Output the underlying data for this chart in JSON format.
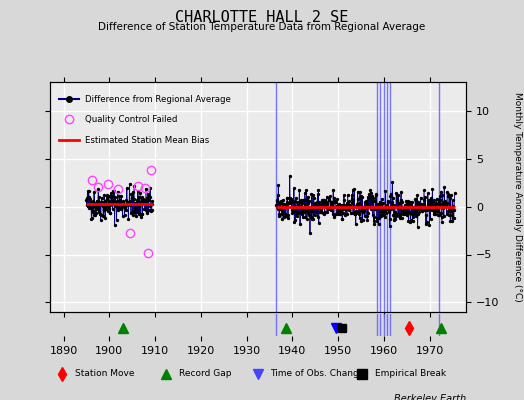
{
  "title": "CHARLOTTE HALL 2 SE",
  "subtitle": "Difference of Station Temperature Data from Regional Average",
  "ylabel": "Monthly Temperature Anomaly Difference (°C)",
  "xlabel_credit": "Berkeley Earth",
  "xlim": [
    1887,
    1978
  ],
  "ylim": [
    -11,
    13
  ],
  "yticks": [
    -10,
    -5,
    0,
    5,
    10
  ],
  "xticks": [
    1890,
    1900,
    1910,
    1920,
    1930,
    1940,
    1950,
    1960,
    1970
  ],
  "bg_color": "#d8d8d8",
  "plot_bg_color": "#ebebeb",
  "grid_color": "#ffffff",
  "segment1_start": 1895.0,
  "segment1_end": 1909.5,
  "segment1_bias": 0.3,
  "segment2_start": 1936.5,
  "segment2_end": 1975.5,
  "segment2_bias": -0.05,
  "qc_times": [
    1896.2,
    1897.5,
    1899.8,
    1902.0,
    1904.5,
    1906.2,
    1907.8,
    1908.5,
    1909.2
  ],
  "qc_values": [
    2.8,
    2.0,
    2.4,
    1.8,
    -2.8,
    2.1,
    1.9,
    -4.8,
    3.8
  ],
  "vertical_lines_blue": [
    1936.5,
    1958.5,
    1959.2,
    1960.0,
    1960.7,
    1961.4,
    1972.0
  ],
  "vertical_line_color": "#6666ff",
  "station_moves": [
    1965.5
  ],
  "record_gaps": [
    1903.0,
    1938.5,
    1972.5
  ],
  "tobs_changes": [
    1949.5
  ],
  "empirical_breaks": [
    1950.8
  ],
  "data_color": "#000080",
  "bias_color": "#ff0000",
  "qc_color": "#ff44ff",
  "noise_std": 0.85,
  "seed": 42
}
